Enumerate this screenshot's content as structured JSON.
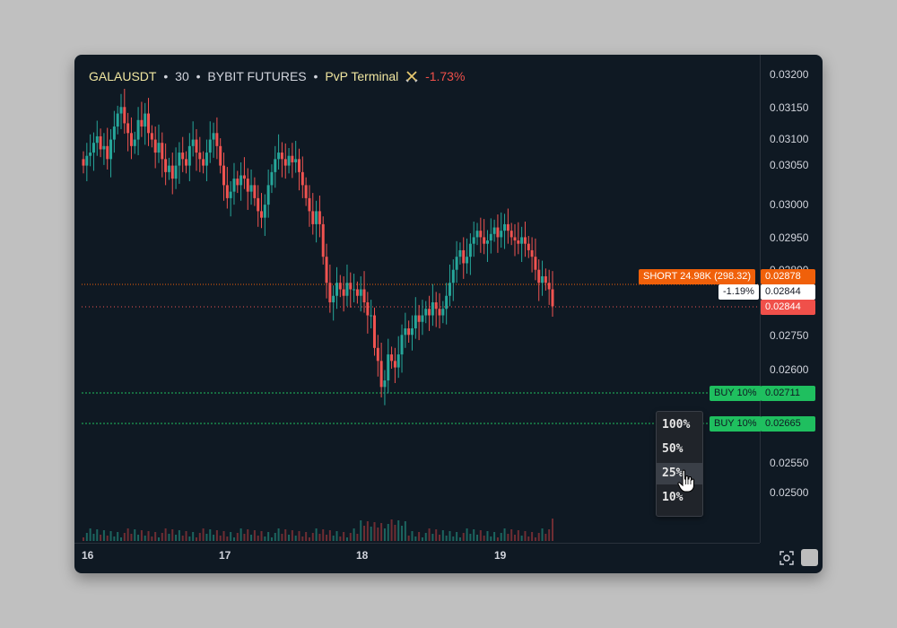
{
  "header": {
    "symbol": "GALAUSDT",
    "sep1": "•",
    "interval": "30",
    "sep2": "•",
    "exchange": "BYBIT FUTURES",
    "sep3": "•",
    "terminal": "PvP Terminal",
    "terminal_icon": "crossed-swords-icon",
    "change": "-1.73%"
  },
  "price_axis": {
    "ticks": [
      "0.03200",
      "0.03150",
      "0.03100",
      "0.03050",
      "0.03000",
      "0.02950",
      "0.02800",
      "0.02750",
      "0.02600",
      "0.02550",
      "0.02500"
    ]
  },
  "time_axis": {
    "labels": [
      "16",
      "17",
      "18",
      "19"
    ]
  },
  "position": {
    "label": "SHORT 24.98K (298.32)",
    "entry_price": "0.02878",
    "pnl": "-1.19%",
    "pnl_price": "0.02844",
    "current_price": "0.02844"
  },
  "orders": [
    {
      "label": "BUY 10%",
      "price": "0.02711"
    },
    {
      "label": "BUY 10%",
      "price": "0.02665"
    }
  ],
  "percent_menu": {
    "options": [
      "100%",
      "50%",
      "25%",
      "10%"
    ],
    "hovered": "25%"
  },
  "icons": {
    "screenshot": "camera-icon",
    "cursor": "hand-pointer-icon"
  },
  "colors": {
    "up": "#26a69a",
    "down": "#ef5350",
    "short": "#f0600a",
    "buy": "#1fbf5f",
    "background": "#0f1923"
  },
  "chart_data": {
    "type": "candlestick",
    "price_range": [
      0.0249,
      0.0322
    ],
    "x_labels": [
      "16",
      "17",
      "18",
      "19"
    ],
    "closes": [
      0.0306,
      0.03075,
      0.0308,
      0.03095,
      0.03105,
      0.03085,
      0.0309,
      0.0307,
      0.031,
      0.0312,
      0.0314,
      0.0315,
      0.03125,
      0.0311,
      0.0309,
      0.031,
      0.0313,
      0.0312,
      0.0314,
      0.0311,
      0.031,
      0.0308,
      0.03095,
      0.0307,
      0.0305,
      0.0306,
      0.0304,
      0.0306,
      0.0308,
      0.0307,
      0.0306,
      0.0309,
      0.031,
      0.0308,
      0.0307,
      0.0306,
      0.0308,
      0.031,
      0.0311,
      0.0309,
      0.0306,
      0.0303,
      0.0301,
      0.0302,
      0.0304,
      0.0303,
      0.03045,
      0.0304,
      0.0302,
      0.0303,
      0.0301,
      0.0299,
      0.0298,
      0.03,
      0.0303,
      0.0305,
      0.0307,
      0.0308,
      0.0307,
      0.0306,
      0.03075,
      0.03065,
      0.0307,
      0.0305,
      0.0303,
      0.0301,
      0.0299,
      0.0297,
      0.0299,
      0.0297,
      0.0292,
      0.0288,
      0.0285,
      0.0286,
      0.0288,
      0.0287,
      0.0286,
      0.0288,
      0.0287,
      0.0287,
      0.0286,
      0.0287,
      0.0285,
      0.0283,
      0.0283,
      0.0278,
      0.0276,
      0.0272,
      0.0273,
      0.0277,
      0.0276,
      0.0275,
      0.0277,
      0.028,
      0.0281,
      0.028,
      0.0281,
      0.0283,
      0.0282,
      0.0283,
      0.0284,
      0.0283,
      0.0285,
      0.0284,
      0.0283,
      0.0284,
      0.0286,
      0.0288,
      0.029,
      0.0292,
      0.0293,
      0.0291,
      0.0292,
      0.0294,
      0.0295,
      0.0296,
      0.0295,
      0.0294,
      0.02945,
      0.02955,
      0.02965,
      0.0295,
      0.0296,
      0.0297,
      0.0296,
      0.0295,
      0.02945,
      0.0294,
      0.0295,
      0.0294,
      0.0293,
      0.0292,
      0.029,
      0.0288,
      0.0289,
      0.0288,
      0.0287,
      0.02844
    ]
  }
}
